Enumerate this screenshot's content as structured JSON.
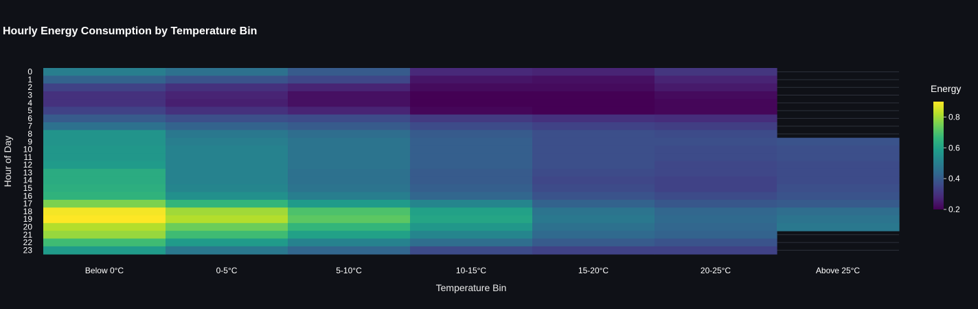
{
  "chart_data": {
    "type": "heatmap",
    "title": "Hourly Energy Consumption by Temperature Bin",
    "xlabel": "Temperature Bin",
    "ylabel": "Hour of Day",
    "categories": [
      "Below 0°C",
      "0-5°C",
      "5-10°C",
      "10-15°C",
      "15-20°C",
      "20-25°C",
      "Above 25°C"
    ],
    "hours": [
      "0",
      "1",
      "2",
      "3",
      "4",
      "5",
      "6",
      "7",
      "8",
      "9",
      "10",
      "11",
      "12",
      "13",
      "14",
      "15",
      "16",
      "17",
      "18",
      "19",
      "20",
      "21",
      "22",
      "23"
    ],
    "colorbar": {
      "title": "Energy",
      "range": [
        0.2,
        0.9
      ],
      "ticks": [
        "0.2",
        "0.4",
        "0.6",
        "0.8"
      ],
      "tick_values": [
        0.2,
        0.4,
        0.6,
        0.8
      ]
    },
    "colorscale": "Viridis",
    "values": [
      [
        0.5,
        0.46,
        0.4,
        0.28,
        0.27,
        0.31,
        null
      ],
      [
        0.42,
        0.38,
        0.35,
        0.24,
        0.23,
        0.27,
        null
      ],
      [
        0.34,
        0.3,
        0.27,
        0.22,
        0.22,
        0.25,
        null
      ],
      [
        0.3,
        0.27,
        0.23,
        0.2,
        0.2,
        0.22,
        null
      ],
      [
        0.3,
        0.26,
        0.23,
        0.19,
        0.19,
        0.21,
        null
      ],
      [
        0.34,
        0.3,
        0.27,
        0.21,
        0.2,
        0.21,
        null
      ],
      [
        0.4,
        0.37,
        0.36,
        0.32,
        0.3,
        0.29,
        null
      ],
      [
        0.46,
        0.42,
        0.4,
        0.36,
        0.34,
        0.33,
        null
      ],
      [
        0.56,
        0.48,
        0.45,
        0.4,
        0.37,
        0.36,
        null
      ],
      [
        0.56,
        0.5,
        0.47,
        0.41,
        0.37,
        0.37,
        0.38
      ],
      [
        0.57,
        0.51,
        0.47,
        0.41,
        0.37,
        0.36,
        0.37
      ],
      [
        0.57,
        0.51,
        0.47,
        0.41,
        0.37,
        0.36,
        0.37
      ],
      [
        0.58,
        0.51,
        0.47,
        0.41,
        0.37,
        0.35,
        0.36
      ],
      [
        0.63,
        0.51,
        0.46,
        0.4,
        0.36,
        0.35,
        0.36
      ],
      [
        0.63,
        0.51,
        0.46,
        0.4,
        0.35,
        0.34,
        0.36
      ],
      [
        0.64,
        0.52,
        0.47,
        0.41,
        0.36,
        0.34,
        0.37
      ],
      [
        0.65,
        0.55,
        0.5,
        0.43,
        0.38,
        0.36,
        0.38
      ],
      [
        0.76,
        0.66,
        0.58,
        0.52,
        0.42,
        0.39,
        0.4
      ],
      [
        0.89,
        0.8,
        0.7,
        0.6,
        0.47,
        0.43,
        0.45
      ],
      [
        0.9,
        0.82,
        0.72,
        0.61,
        0.48,
        0.44,
        0.47
      ],
      [
        0.82,
        0.74,
        0.66,
        0.57,
        0.46,
        0.43,
        0.48
      ],
      [
        0.79,
        0.68,
        0.6,
        0.52,
        0.44,
        0.42,
        null
      ],
      [
        0.68,
        0.58,
        0.51,
        0.45,
        0.4,
        0.38,
        null
      ],
      [
        0.58,
        0.48,
        0.43,
        0.36,
        0.34,
        0.34,
        null
      ]
    ]
  }
}
